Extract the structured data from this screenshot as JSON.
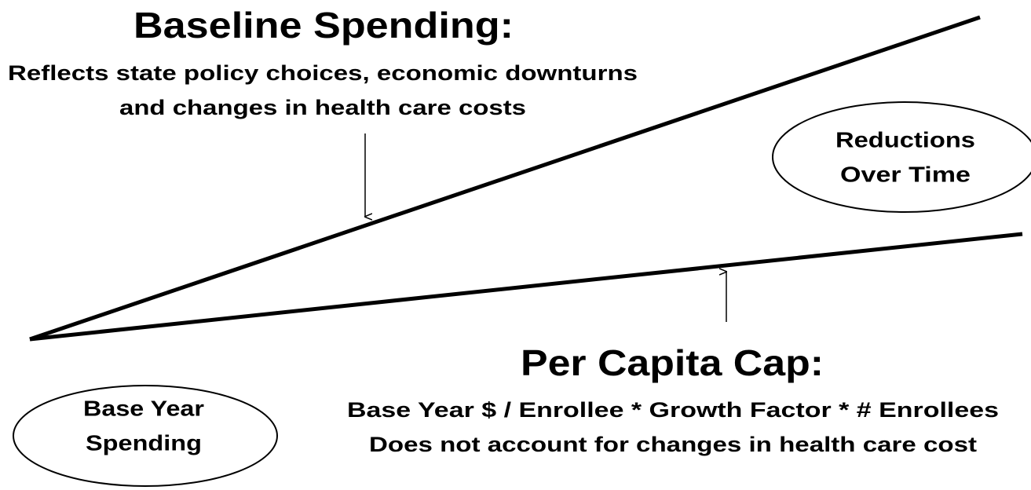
{
  "baseline": {
    "title": "Baseline Spending:",
    "lines": [
      "Reflects state policy choices, economic downturns",
      "and changes in health care costs"
    ]
  },
  "reductions": {
    "lines": [
      "Reductions",
      "Over Time"
    ]
  },
  "cap": {
    "title": "Per Capita Cap:",
    "lines": [
      "Base Year $ / Enrollee * Growth Factor * # Enrollees",
      "Does not account for changes in health care cost"
    ]
  },
  "base_year": {
    "lines": [
      "Base Year",
      "Spending"
    ]
  }
}
